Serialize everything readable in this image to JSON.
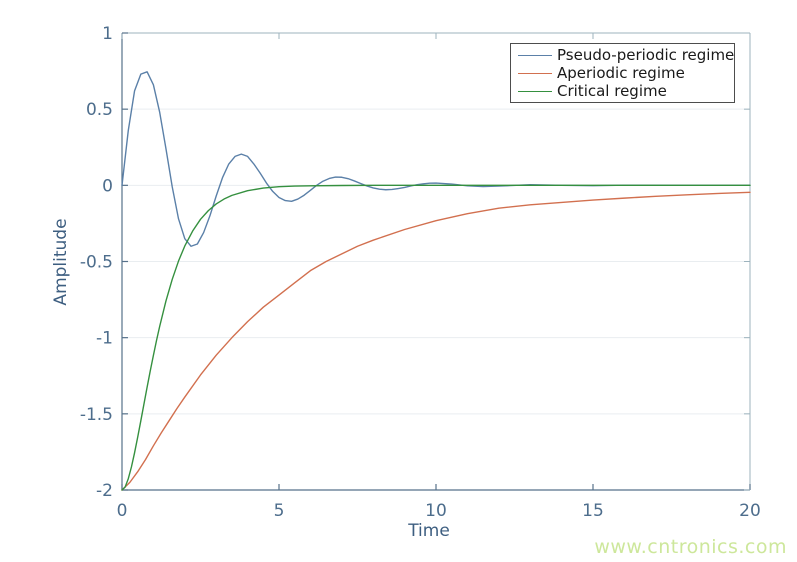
{
  "watermark": {
    "text": "www.cntronics.com",
    "color": "#cde79b"
  },
  "axes": {
    "xlabel": "Time",
    "ylabel": "Amplitude",
    "x_ticks": [
      0,
      5,
      10,
      15,
      20
    ],
    "x_tick_labels": [
      "0",
      "5",
      "10",
      "15",
      "20"
    ],
    "y_ticks": [
      1,
      0.5,
      0,
      -0.5,
      -1,
      -1.5,
      -2
    ],
    "y_tick_labels": [
      "1",
      "0.5",
      "0",
      "-0.5",
      "-1",
      "-1.5",
      "-2"
    ],
    "xlim": [
      0,
      20
    ],
    "ylim": [
      -2,
      1
    ],
    "grid": "horizontal-only",
    "tick_label_color": "#4d6d8c",
    "axis_label_color": "#3d5e80",
    "spine_color_dark": "#56718a",
    "spine_color_light": "#9db3bd",
    "grid_color": "#e9edf0"
  },
  "legend": {
    "position": "top-right",
    "border_color": "#4d4d4d",
    "text_color": "#1a1a1a",
    "items": [
      {
        "label": "Pseudo-periodic regime",
        "color": "#5b80a8"
      },
      {
        "label": "Aperiodic regime",
        "color": "#d2704f"
      },
      {
        "label": "Critical regime",
        "color": "#35903f"
      }
    ]
  },
  "chart_data": {
    "type": "line",
    "title": "",
    "xlabel": "Time",
    "ylabel": "Amplitude",
    "xlim": [
      0,
      20
    ],
    "ylim": [
      -2,
      1
    ],
    "grid": "horizontal",
    "legend_position": "top-right",
    "series": [
      {
        "name": "Pseudo-periodic regime",
        "color": "#5b80a8",
        "x": [
          0,
          0.2,
          0.4,
          0.6,
          0.8,
          1.0,
          1.2,
          1.4,
          1.6,
          1.8,
          2.0,
          2.2,
          2.4,
          2.6,
          2.8,
          3.0,
          3.2,
          3.4,
          3.6,
          3.8,
          4.0,
          4.2,
          4.4,
          4.6,
          4.8,
          5.0,
          5.2,
          5.4,
          5.6,
          5.8,
          6.0,
          6.2,
          6.4,
          6.6,
          6.8,
          7.0,
          7.2,
          7.4,
          7.6,
          7.8,
          8.0,
          8.2,
          8.4,
          8.6,
          8.8,
          9.0,
          9.2,
          9.4,
          9.6,
          9.8,
          10.0,
          10.5,
          11.0,
          11.5,
          12.0,
          13.0,
          14.0,
          15.0,
          16.0,
          18.0,
          20.0
        ],
        "y": [
          0.0,
          0.36,
          0.62,
          0.73,
          0.745,
          0.66,
          0.48,
          0.24,
          -0.01,
          -0.22,
          -0.35,
          -0.4,
          -0.385,
          -0.31,
          -0.2,
          -0.07,
          0.05,
          0.14,
          0.19,
          0.205,
          0.19,
          0.14,
          0.08,
          0.015,
          -0.04,
          -0.08,
          -0.1,
          -0.105,
          -0.09,
          -0.065,
          -0.033,
          0.0,
          0.027,
          0.045,
          0.054,
          0.053,
          0.044,
          0.029,
          0.012,
          -0.004,
          -0.017,
          -0.025,
          -0.029,
          -0.027,
          -0.021,
          -0.014,
          -0.004,
          0.004,
          0.01,
          0.014,
          0.015,
          0.008,
          -0.003,
          -0.008,
          -0.005,
          0.004,
          0.0,
          -0.002,
          0.001,
          0.0,
          0.0
        ]
      },
      {
        "name": "Aperiodic regime",
        "color": "#d2704f",
        "x": [
          0,
          0.25,
          0.5,
          0.75,
          1,
          1.25,
          1.5,
          1.75,
          2,
          2.5,
          3,
          3.5,
          4,
          4.5,
          5,
          5.5,
          6,
          6.5,
          7,
          7.5,
          8,
          9,
          10,
          11,
          12,
          13,
          14,
          15,
          16,
          17,
          18,
          19,
          20
        ],
        "y": [
          -2.0,
          -1.95,
          -1.88,
          -1.8,
          -1.71,
          -1.625,
          -1.545,
          -1.465,
          -1.39,
          -1.245,
          -1.115,
          -1.0,
          -0.895,
          -0.8,
          -0.72,
          -0.64,
          -0.56,
          -0.5,
          -0.45,
          -0.4,
          -0.36,
          -0.29,
          -0.232,
          -0.186,
          -0.15,
          -0.128,
          -0.112,
          -0.097,
          -0.084,
          -0.072,
          -0.062,
          -0.053,
          -0.046
        ]
      },
      {
        "name": "Critical regime",
        "color": "#35903f",
        "x": [
          0,
          0.1,
          0.2,
          0.3,
          0.4,
          0.5,
          0.6,
          0.7,
          0.8,
          0.9,
          1.0,
          1.1,
          1.2,
          1.4,
          1.6,
          1.8,
          2.0,
          2.25,
          2.5,
          2.75,
          3.0,
          3.25,
          3.5,
          4.0,
          4.5,
          5.0,
          5.5,
          6.0,
          7.0,
          8.0,
          9.0,
          10.0,
          12.0,
          14.0,
          16.0,
          18.0,
          20.0
        ],
        "y": [
          -2.0,
          -1.98,
          -1.926,
          -1.849,
          -1.756,
          -1.653,
          -1.545,
          -1.435,
          -1.325,
          -1.218,
          -1.116,
          -1.018,
          -0.926,
          -0.759,
          -0.617,
          -0.497,
          -0.398,
          -0.3,
          -0.223,
          -0.166,
          -0.122,
          -0.09,
          -0.066,
          -0.035,
          -0.018,
          -0.009,
          -0.005,
          -0.003,
          -0.001,
          0.0,
          0.0,
          0.0,
          0.0,
          0.0,
          0.0,
          0.0,
          0.0
        ]
      }
    ]
  }
}
